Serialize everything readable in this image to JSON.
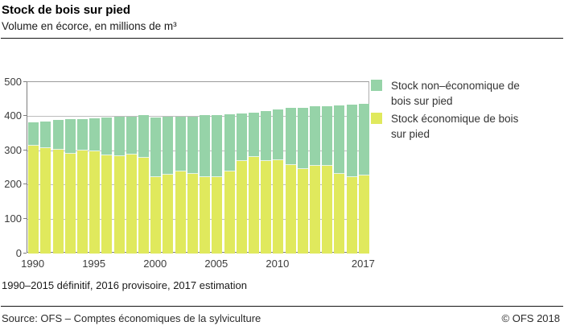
{
  "header": {
    "title": "Stock de bois sur pied",
    "subtitle": "Volume en écorce, en millions de m³"
  },
  "legend": [
    {
      "key": "non_economic",
      "label": "Stock non–économique de\nbois sur pied",
      "color": "#96d3a8"
    },
    {
      "key": "economic",
      "label": "Stock économique de bois\nsur pied",
      "color": "#e0e95d"
    }
  ],
  "chart_data": {
    "type": "bar",
    "stacked": true,
    "title": "Stock de bois sur pied",
    "subtitle": "Volume en écorce, en millions de m³",
    "unit": "millions de m³",
    "ylim": [
      0,
      500
    ],
    "yticks": [
      0,
      100,
      200,
      300,
      400,
      500
    ],
    "grid": true,
    "legend_position": "top-right",
    "xtick_years": [
      1990,
      1995,
      2000,
      2005,
      2010,
      2017
    ],
    "years": [
      1990,
      1991,
      1992,
      1993,
      1994,
      1995,
      1996,
      1997,
      1998,
      1999,
      2000,
      2001,
      2002,
      2003,
      2004,
      2005,
      2006,
      2007,
      2008,
      2009,
      2010,
      2011,
      2012,
      2013,
      2014,
      2015,
      2016,
      2017
    ],
    "series": [
      {
        "name": "Stock économique de bois sur pied",
        "color": "#e0e95d",
        "values": [
          315,
          307,
          303,
          290,
          301,
          297,
          286,
          283,
          288,
          280,
          223,
          230,
          239,
          232,
          223,
          224,
          240,
          270,
          281,
          270,
          273,
          259,
          247,
          257,
          256,
          233,
          224,
          227
        ]
      },
      {
        "name": "Stock non–économique de bois sur pied",
        "color": "#96d3a8",
        "values": [
          67,
          79,
          86,
          101,
          92,
          98,
          111,
          115,
          112,
          124,
          174,
          168,
          160,
          168,
          180,
          180,
          166,
          138,
          130,
          145,
          147,
          165,
          179,
          172,
          174,
          199,
          210,
          209
        ]
      }
    ],
    "totals": [
      382,
      386,
      389,
      391,
      393,
      395,
      397,
      398,
      400,
      404,
      397,
      398,
      399,
      400,
      403,
      404,
      406,
      408,
      411,
      415,
      420,
      424,
      426,
      429,
      430,
      432,
      434,
      436
    ]
  },
  "footnote": "1990–2015 définitif, 2016 provisoire, 2017 estimation",
  "footer": {
    "source": "Source: OFS – Comptes économiques de la sylviculture",
    "copyright": "© OFS  2018"
  }
}
